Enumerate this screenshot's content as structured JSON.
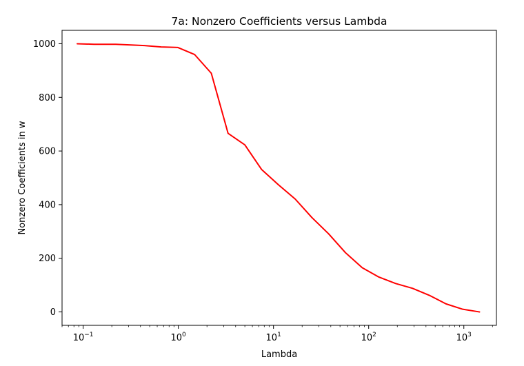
{
  "chart_data": {
    "type": "line",
    "title": "7a: Nonzero Coefficients versus Lambda",
    "xlabel": "Lambda",
    "ylabel": "Nonzero Coefficients in w",
    "xscale": "log",
    "xlim": [
      0.06,
      2200
    ],
    "ylim": [
      -50,
      1050
    ],
    "grid": false,
    "series": [
      {
        "color": "#ff0000",
        "x": [
          0.0866,
          0.13,
          0.22,
          0.44,
          0.66,
          0.99,
          1.48,
          2.22,
          3.33,
          5.0,
          7.5,
          11.2,
          16.9,
          25.3,
          38.0,
          57.0,
          85.5,
          128,
          192,
          289,
          433,
          650,
          974,
          1461
        ],
        "y": [
          1000,
          998,
          998,
          993,
          988,
          986,
          960,
          890,
          666,
          623,
          531,
          475,
          421,
          352,
          291,
          221,
          165,
          130,
          106,
          88,
          62,
          30,
          10,
          0
        ]
      }
    ],
    "x_ticks": [
      {
        "value": 0.1,
        "base": "10",
        "exp": "−1"
      },
      {
        "value": 1,
        "base": "10",
        "exp": "0"
      },
      {
        "value": 10,
        "base": "10",
        "exp": "1"
      },
      {
        "value": 100,
        "base": "10",
        "exp": "2"
      },
      {
        "value": 1000,
        "base": "10",
        "exp": "3"
      }
    ],
    "y_ticks": [
      {
        "value": 0,
        "label": "0"
      },
      {
        "value": 200,
        "label": "200"
      },
      {
        "value": 400,
        "label": "400"
      },
      {
        "value": 600,
        "label": "600"
      },
      {
        "value": 800,
        "label": "800"
      },
      {
        "value": 1000,
        "label": "1000"
      }
    ]
  }
}
